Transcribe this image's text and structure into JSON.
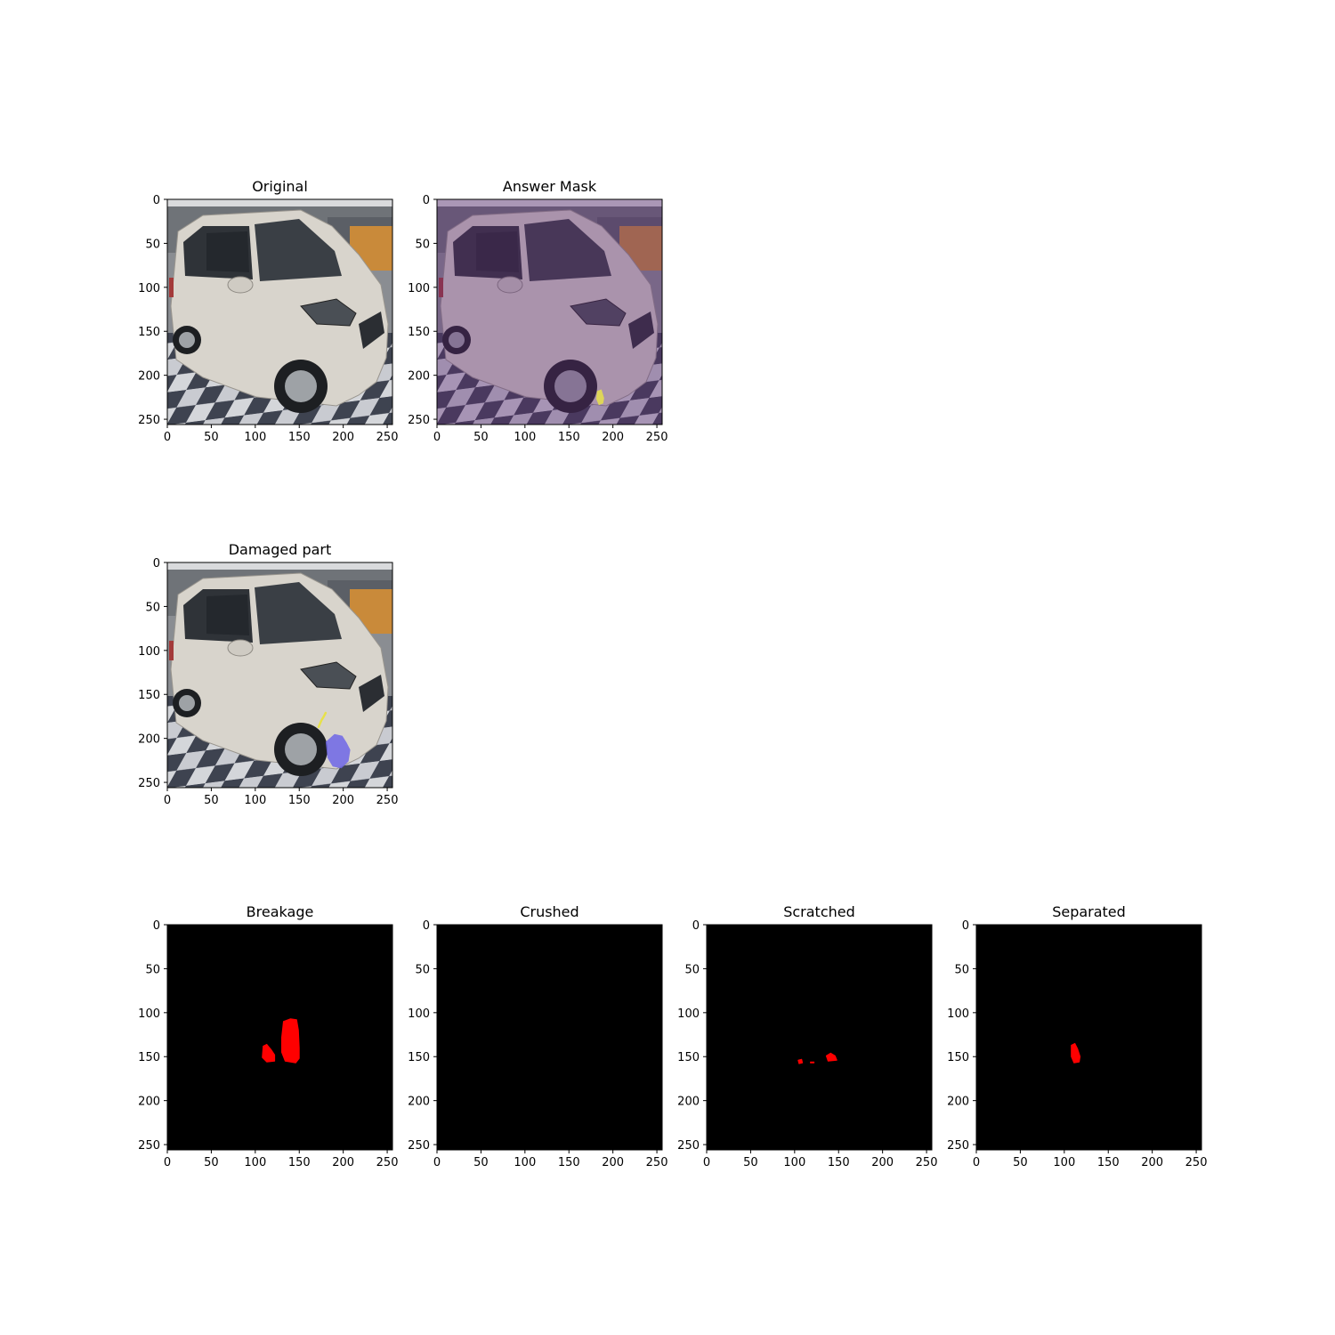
{
  "figure": {
    "panels": [
      {
        "id": "original",
        "title": "Original",
        "kind": "photo",
        "tint": "none",
        "overlays": []
      },
      {
        "id": "answer-mask",
        "title": "Answer Mask",
        "kind": "photo",
        "tint": "purple",
        "overlays": [
          {
            "label": "mask-highlight",
            "color": "#e7e14a",
            "points": [
              [
                182,
                218
              ],
              [
                187,
                216
              ],
              [
                190,
                226
              ],
              [
                189,
                232
              ],
              [
                184,
                234
              ],
              [
                181,
                227
              ]
            ]
          }
        ]
      },
      {
        "id": "damaged-part",
        "title": "Damaged part",
        "kind": "photo",
        "tint": "none",
        "overlays": [
          {
            "label": "scratch-line",
            "color": "#e7e14a",
            "polyline": true,
            "points": [
              [
                172,
                187
              ],
              [
                175,
                180
              ],
              [
                178,
                175
              ],
              [
                180,
                171
              ]
            ]
          },
          {
            "label": "damage-region",
            "color": "#6f66e6",
            "points": [
              [
                180,
                204
              ],
              [
                190,
                195
              ],
              [
                199,
                197
              ],
              [
                204,
                205
              ],
              [
                208,
                213
              ],
              [
                206,
                226
              ],
              [
                198,
                234
              ],
              [
                188,
                232
              ],
              [
                182,
                222
              ]
            ]
          }
        ]
      },
      {
        "id": "breakage",
        "title": "Breakage",
        "kind": "mask",
        "regions": [
          {
            "color": "#ff0000",
            "points": [
              [
                132,
                110
              ],
              [
                140,
                107
              ],
              [
                147,
                108
              ],
              [
                149,
                120
              ],
              [
                150,
                140
              ],
              [
                150,
                152
              ],
              [
                146,
                157
              ],
              [
                134,
                155
              ],
              [
                130,
                145
              ],
              [
                130,
                128
              ]
            ]
          },
          {
            "color": "#ff0000",
            "points": [
              [
                109,
                138
              ],
              [
                113,
                136
              ],
              [
                118,
                142
              ],
              [
                122,
                148
              ],
              [
                122,
                155
              ],
              [
                113,
                156
              ],
              [
                108,
                151
              ]
            ]
          }
        ]
      },
      {
        "id": "crushed",
        "title": "Crushed",
        "kind": "mask",
        "regions": []
      },
      {
        "id": "scratched",
        "title": "Scratched",
        "kind": "mask",
        "regions": [
          {
            "color": "#ff0000",
            "points": [
              [
                104,
                154
              ],
              [
                108,
                153
              ],
              [
                109,
                157
              ],
              [
                105,
                158
              ]
            ]
          },
          {
            "color": "#ff0000",
            "points": [
              [
                136,
                149
              ],
              [
                141,
                146
              ],
              [
                146,
                149
              ],
              [
                148,
                154
              ],
              [
                138,
                155
              ]
            ]
          },
          {
            "color": "#ff0000",
            "points": [
              [
                118,
                156
              ],
              [
                122,
                156
              ],
              [
                122,
                157
              ],
              [
                118,
                157
              ]
            ]
          }
        ]
      },
      {
        "id": "separated",
        "title": "Separated",
        "kind": "mask",
        "regions": [
          {
            "color": "#ff0000",
            "points": [
              [
                108,
                137
              ],
              [
                112,
                135
              ],
              [
                115,
                141
              ],
              [
                118,
                150
              ],
              [
                117,
                156
              ],
              [
                111,
                157
              ],
              [
                108,
                150
              ]
            ]
          }
        ]
      }
    ],
    "axis": {
      "xlim": [
        0,
        255
      ],
      "ylim": [
        0,
        255
      ],
      "xticks": [
        "0",
        "50",
        "100",
        "150",
        "200",
        "250"
      ],
      "yticks": [
        "0",
        "50",
        "100",
        "150",
        "200",
        "250"
      ]
    }
  }
}
